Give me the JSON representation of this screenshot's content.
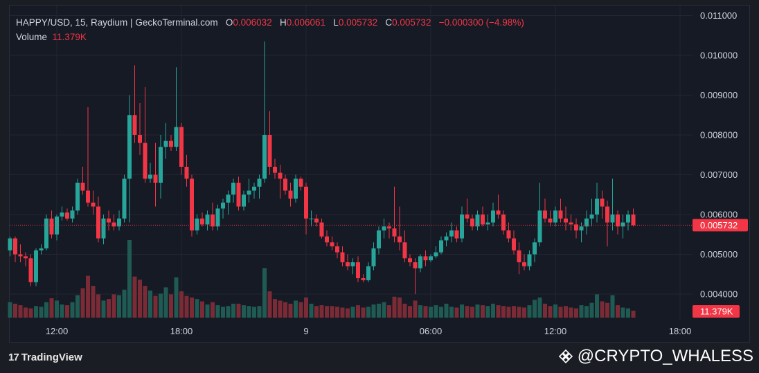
{
  "header": {
    "symbol": "HAPPY/USD, 15, Raydium | GeckoTerminal.com",
    "o_label": "O",
    "o_value": "0.006032",
    "h_label": "H",
    "h_value": "0.006061",
    "l_label": "L",
    "l_value": "0.005732",
    "c_label": "C",
    "c_value": "0.005732",
    "change": "−0.000300 (−4.98%)",
    "volume_label": "Volume",
    "volume_value": "11.379K"
  },
  "branding": {
    "tradingview": "TradingView",
    "watermark": "@CRYPTO_WHALESS"
  },
  "colors": {
    "up": "#26a69a",
    "down": "#f23645",
    "up_volume": "#1f5a53",
    "down_volume": "#7a2b35",
    "grid": "#232632",
    "text": "#d1d4dc",
    "last_price_bg": "#f23645"
  },
  "chart_data": {
    "type": "candlestick",
    "price_axis": {
      "range": [
        0.0037,
        0.0111
      ],
      "ticks": [
        "0.004000",
        "0.005000",
        "0.006000",
        "0.007000",
        "0.008000",
        "0.009000",
        "0.010000",
        "0.011000"
      ]
    },
    "time_axis": {
      "ticks": [
        {
          "label": "12:00",
          "index": 9
        },
        {
          "label": "18:00",
          "index": 33
        },
        {
          "label": "9",
          "index": 57
        },
        {
          "label": "06:00",
          "index": 81
        },
        {
          "label": "12:00",
          "index": 105
        },
        {
          "label": "18:00",
          "index": 129
        }
      ]
    },
    "last_price": "0.005732",
    "last_volume": "11.379K",
    "grid": true,
    "candles": [
      [
        0.0051,
        0.00545,
        0.00495,
        0.0054
      ],
      [
        0.0054,
        0.00545,
        0.0048,
        0.005
      ],
      [
        0.005,
        0.00525,
        0.0048,
        0.00495
      ],
      [
        0.00495,
        0.00505,
        0.0047,
        0.0049
      ],
      [
        0.0049,
        0.005,
        0.0042,
        0.0043
      ],
      [
        0.0043,
        0.00515,
        0.0042,
        0.0051
      ],
      [
        0.0051,
        0.00525,
        0.005,
        0.00515
      ],
      [
        0.00515,
        0.006,
        0.0051,
        0.0059
      ],
      [
        0.0059,
        0.0061,
        0.0054,
        0.0055
      ],
      [
        0.0055,
        0.006,
        0.00535,
        0.00595
      ],
      [
        0.00595,
        0.0062,
        0.00585,
        0.00605
      ],
      [
        0.00605,
        0.00615,
        0.00585,
        0.0059
      ],
      [
        0.0059,
        0.0062,
        0.0058,
        0.0061
      ],
      [
        0.0061,
        0.0069,
        0.006,
        0.0068
      ],
      [
        0.0068,
        0.0072,
        0.0065,
        0.0066
      ],
      [
        0.0066,
        0.0087,
        0.0062,
        0.0063
      ],
      [
        0.0063,
        0.0066,
        0.006,
        0.0062
      ],
      [
        0.0062,
        0.00645,
        0.0053,
        0.0054
      ],
      [
        0.0054,
        0.006,
        0.00525,
        0.0059
      ],
      [
        0.0059,
        0.0061,
        0.0056,
        0.0058
      ],
      [
        0.0058,
        0.006,
        0.0056,
        0.0057
      ],
      [
        0.0057,
        0.0061,
        0.0056,
        0.0059
      ],
      [
        0.0059,
        0.007,
        0.0058,
        0.0069
      ],
      [
        0.0069,
        0.009,
        0.0058,
        0.0085
      ],
      [
        0.0085,
        0.00975,
        0.0078,
        0.008
      ],
      [
        0.008,
        0.0088,
        0.0075,
        0.0078
      ],
      [
        0.0078,
        0.0092,
        0.0068,
        0.0069
      ],
      [
        0.0069,
        0.0073,
        0.0068,
        0.007
      ],
      [
        0.007,
        0.0078,
        0.0062,
        0.0068
      ],
      [
        0.0068,
        0.008,
        0.0064,
        0.0077
      ],
      [
        0.0077,
        0.0083,
        0.0074,
        0.00785
      ],
      [
        0.00785,
        0.008,
        0.0076,
        0.0077
      ],
      [
        0.0077,
        0.0097,
        0.0076,
        0.0082
      ],
      [
        0.0082,
        0.0083,
        0.007,
        0.0072
      ],
      [
        0.0072,
        0.0075,
        0.0067,
        0.0069
      ],
      [
        0.0069,
        0.007,
        0.00545,
        0.0056
      ],
      [
        0.0056,
        0.006,
        0.0055,
        0.0059
      ],
      [
        0.0059,
        0.00605,
        0.0057,
        0.00575
      ],
      [
        0.00575,
        0.0061,
        0.0056,
        0.006
      ],
      [
        0.006,
        0.0063,
        0.0056,
        0.0057
      ],
      [
        0.0057,
        0.00625,
        0.0056,
        0.00615
      ],
      [
        0.00615,
        0.0064,
        0.0059,
        0.0063
      ],
      [
        0.0063,
        0.0066,
        0.006,
        0.0065
      ],
      [
        0.0065,
        0.0069,
        0.0063,
        0.0068
      ],
      [
        0.0068,
        0.00695,
        0.0061,
        0.0062
      ],
      [
        0.0062,
        0.0066,
        0.0061,
        0.0065
      ],
      [
        0.0065,
        0.0069,
        0.0063,
        0.0066
      ],
      [
        0.0066,
        0.0068,
        0.0064,
        0.0067
      ],
      [
        0.0067,
        0.007,
        0.0064,
        0.0069
      ],
      [
        0.0069,
        0.01035,
        0.0068,
        0.008
      ],
      [
        0.008,
        0.0086,
        0.007,
        0.0072
      ],
      [
        0.0072,
        0.0074,
        0.0069,
        0.00705
      ],
      [
        0.00705,
        0.00725,
        0.0064,
        0.0069
      ],
      [
        0.0069,
        0.007,
        0.0065,
        0.0066
      ],
      [
        0.0066,
        0.0068,
        0.0062,
        0.0064
      ],
      [
        0.0064,
        0.007,
        0.0063,
        0.0069
      ],
      [
        0.0069,
        0.00695,
        0.0066,
        0.0067
      ],
      [
        0.0067,
        0.0068,
        0.0055,
        0.0059
      ],
      [
        0.0059,
        0.0061,
        0.0057,
        0.0059
      ],
      [
        0.0059,
        0.006,
        0.0057,
        0.0058
      ],
      [
        0.0058,
        0.0059,
        0.0054,
        0.00545
      ],
      [
        0.00545,
        0.0056,
        0.0052,
        0.0053
      ],
      [
        0.0053,
        0.00545,
        0.0051,
        0.0052
      ],
      [
        0.0052,
        0.0053,
        0.0049,
        0.00505
      ],
      [
        0.00505,
        0.0052,
        0.0047,
        0.0048
      ],
      [
        0.0048,
        0.005,
        0.0046,
        0.0047
      ],
      [
        0.0047,
        0.0049,
        0.0045,
        0.0048
      ],
      [
        0.0048,
        0.00495,
        0.0043,
        0.0044
      ],
      [
        0.0044,
        0.0045,
        0.0043,
        0.00435
      ],
      [
        0.00435,
        0.0048,
        0.0043,
        0.0047
      ],
      [
        0.0047,
        0.0053,
        0.0046,
        0.00515
      ],
      [
        0.00515,
        0.0057,
        0.005,
        0.0056
      ],
      [
        0.0056,
        0.0059,
        0.0054,
        0.0057
      ],
      [
        0.0057,
        0.0058,
        0.0054,
        0.00565
      ],
      [
        0.00565,
        0.0067,
        0.0053,
        0.00545
      ],
      [
        0.00545,
        0.0062,
        0.0051,
        0.0053
      ],
      [
        0.0053,
        0.0056,
        0.0048,
        0.0049
      ],
      [
        0.0049,
        0.005,
        0.0047,
        0.0048
      ],
      [
        0.0048,
        0.0049,
        0.004,
        0.00465
      ],
      [
        0.00465,
        0.005,
        0.00455,
        0.00495
      ],
      [
        0.00495,
        0.0051,
        0.0047,
        0.00485
      ],
      [
        0.00485,
        0.005,
        0.0048,
        0.00495
      ],
      [
        0.00495,
        0.0052,
        0.0049,
        0.00505
      ],
      [
        0.00505,
        0.00545,
        0.005,
        0.00535
      ],
      [
        0.00535,
        0.00555,
        0.0052,
        0.00545
      ],
      [
        0.00545,
        0.0058,
        0.0053,
        0.0056
      ],
      [
        0.0056,
        0.0057,
        0.0053,
        0.0054
      ],
      [
        0.0054,
        0.0062,
        0.0053,
        0.006
      ],
      [
        0.006,
        0.0064,
        0.0058,
        0.0059
      ],
      [
        0.0059,
        0.006,
        0.0056,
        0.0057
      ],
      [
        0.0057,
        0.0061,
        0.0056,
        0.006
      ],
      [
        0.006,
        0.0062,
        0.0057,
        0.00575
      ],
      [
        0.00575,
        0.006,
        0.0056,
        0.0058
      ],
      [
        0.0058,
        0.0063,
        0.0057,
        0.0061
      ],
      [
        0.0061,
        0.0065,
        0.0059,
        0.006
      ],
      [
        0.006,
        0.0061,
        0.0055,
        0.0056
      ],
      [
        0.0056,
        0.0058,
        0.0053,
        0.0054
      ],
      [
        0.0054,
        0.0056,
        0.005,
        0.0051
      ],
      [
        0.0051,
        0.0053,
        0.0045,
        0.0048
      ],
      [
        0.0048,
        0.005,
        0.0046,
        0.0047
      ],
      [
        0.0047,
        0.0051,
        0.0046,
        0.005
      ],
      [
        0.005,
        0.0054,
        0.0048,
        0.0053
      ],
      [
        0.0053,
        0.0068,
        0.0052,
        0.0061
      ],
      [
        0.0061,
        0.0064,
        0.0058,
        0.0059
      ],
      [
        0.0059,
        0.0061,
        0.0057,
        0.0058
      ],
      [
        0.0058,
        0.0062,
        0.0057,
        0.0061
      ],
      [
        0.0061,
        0.0064,
        0.0058,
        0.0059
      ],
      [
        0.0059,
        0.0062,
        0.0056,
        0.0058
      ],
      [
        0.0058,
        0.006,
        0.0056,
        0.00575
      ],
      [
        0.00575,
        0.0059,
        0.0054,
        0.0056
      ],
      [
        0.0056,
        0.0058,
        0.0053,
        0.0057
      ],
      [
        0.0057,
        0.0061,
        0.0055,
        0.0059
      ],
      [
        0.0059,
        0.0064,
        0.0057,
        0.006
      ],
      [
        0.006,
        0.0068,
        0.0058,
        0.0064
      ],
      [
        0.0064,
        0.0066,
        0.0059,
        0.0062
      ],
      [
        0.0062,
        0.00635,
        0.0052,
        0.0058
      ],
      [
        0.0058,
        0.0069,
        0.0056,
        0.006
      ],
      [
        0.006,
        0.0061,
        0.0055,
        0.0057
      ],
      [
        0.0057,
        0.006,
        0.0054,
        0.0058
      ],
      [
        0.0058,
        0.0061,
        0.0056,
        0.006
      ],
      [
        0.006,
        0.00615,
        0.0057,
        0.00573
      ]
    ],
    "volumes": [
      2.0,
      1.8,
      1.6,
      1.3,
      1.2,
      1.5,
      1.4,
      2.0,
      2.5,
      2.2,
      1.7,
      1.6,
      2.0,
      2.9,
      3.8,
      5.4,
      4.1,
      3.0,
      2.2,
      2.4,
      3.0,
      2.9,
      3.6,
      10.0,
      5.3,
      4.9,
      4.1,
      3.5,
      2.8,
      3.1,
      3.9,
      3.0,
      5.2,
      3.4,
      2.8,
      2.6,
      2.4,
      2.1,
      1.7,
      2.0,
      1.6,
      1.4,
      1.5,
      1.8,
      1.8,
      1.6,
      1.5,
      1.4,
      1.5,
      6.4,
      3.4,
      2.4,
      2.2,
      2.0,
      1.8,
      2.2,
      2.0,
      2.6,
      1.8,
      1.5,
      1.6,
      1.5,
      1.5,
      1.4,
      1.3,
      1.2,
      1.4,
      1.6,
      1.3,
      1.4,
      1.7,
      1.8,
      2.0,
      1.6,
      2.7,
      2.6,
      1.8,
      1.5,
      2.2,
      1.6,
      1.5,
      1.4,
      1.6,
      1.4,
      1.8,
      1.4,
      1.3,
      1.7,
      1.5,
      1.4,
      1.7,
      1.6,
      1.5,
      1.8,
      1.6,
      1.5,
      1.4,
      1.5,
      1.4,
      1.3,
      1.6,
      2.3,
      2.6,
      1.8,
      1.5,
      1.7,
      1.4,
      1.5,
      1.3,
      1.2,
      1.6,
      1.5,
      1.9,
      3.0,
      2.1,
      1.9,
      2.9,
      1.6,
      1.3,
      1.2,
      0.9
    ]
  }
}
